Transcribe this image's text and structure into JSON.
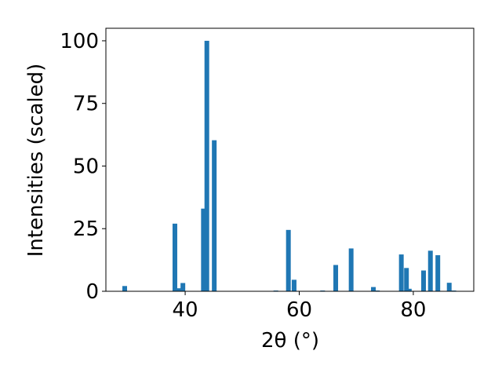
{
  "chart_data": {
    "type": "bar",
    "xlabel": "2θ (°)",
    "ylabel": "Intensities (scaled)",
    "x": [
      29.4,
      38.2,
      39.0,
      39.6,
      43.2,
      43.8,
      45.1,
      55.9,
      58.1,
      59.1,
      64.1,
      66.4,
      69.1,
      73.0,
      73.7,
      77.9,
      78.8,
      79.3,
      81.8,
      83.0,
      84.3,
      86.3,
      87.1
    ],
    "values": [
      2.1,
      27,
      1.2,
      3.3,
      33,
      100,
      60.3,
      0.3,
      24.5,
      4.6,
      0.3,
      10.5,
      17.1,
      1.7,
      0.3,
      14.7,
      9.3,
      1,
      8.3,
      16.2,
      14.4,
      3.4,
      0.3
    ],
    "color": "#1f77b4",
    "xlim": [
      26.1,
      90.6
    ],
    "xticks": [
      40,
      60,
      80
    ],
    "ylim": [
      0,
      105
    ],
    "yticks": [
      0,
      25,
      50,
      75,
      100
    ],
    "grid": false
  }
}
